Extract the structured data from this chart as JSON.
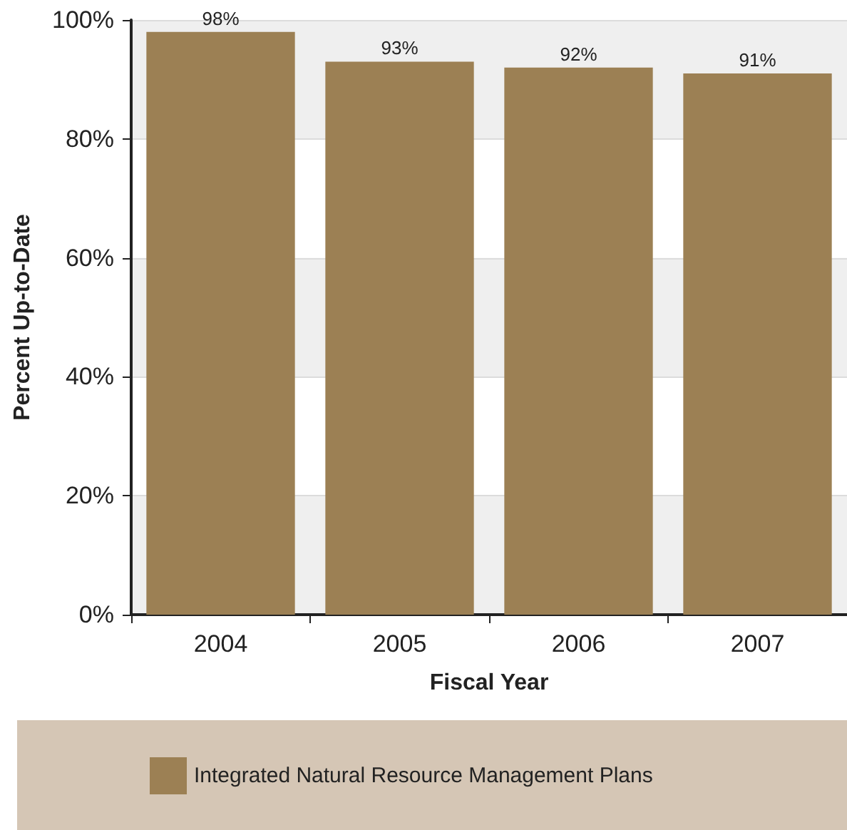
{
  "chart_data": {
    "type": "bar",
    "xlabel": "Fiscal Year",
    "ylabel": "Percent Up-to-Date",
    "categories": [
      "2004",
      "2005",
      "2006",
      "2007"
    ],
    "series": [
      {
        "name": "Integrated Natural Resource Management Plans",
        "color": "#9c8054",
        "values": [
          98,
          93,
          92,
          91
        ],
        "value_labels": [
          "98%",
          "93%",
          "92%",
          "91%"
        ]
      }
    ],
    "ylim": [
      0,
      100
    ],
    "yticks": [
      {
        "value": 0,
        "label": "0%"
      },
      {
        "value": 20,
        "label": "20%"
      },
      {
        "value": 40,
        "label": "40%"
      },
      {
        "value": 60,
        "label": "60%"
      },
      {
        "value": 80,
        "label": "80%"
      },
      {
        "value": 100,
        "label": "100%"
      }
    ],
    "grid": "y",
    "legend": "bottom"
  }
}
